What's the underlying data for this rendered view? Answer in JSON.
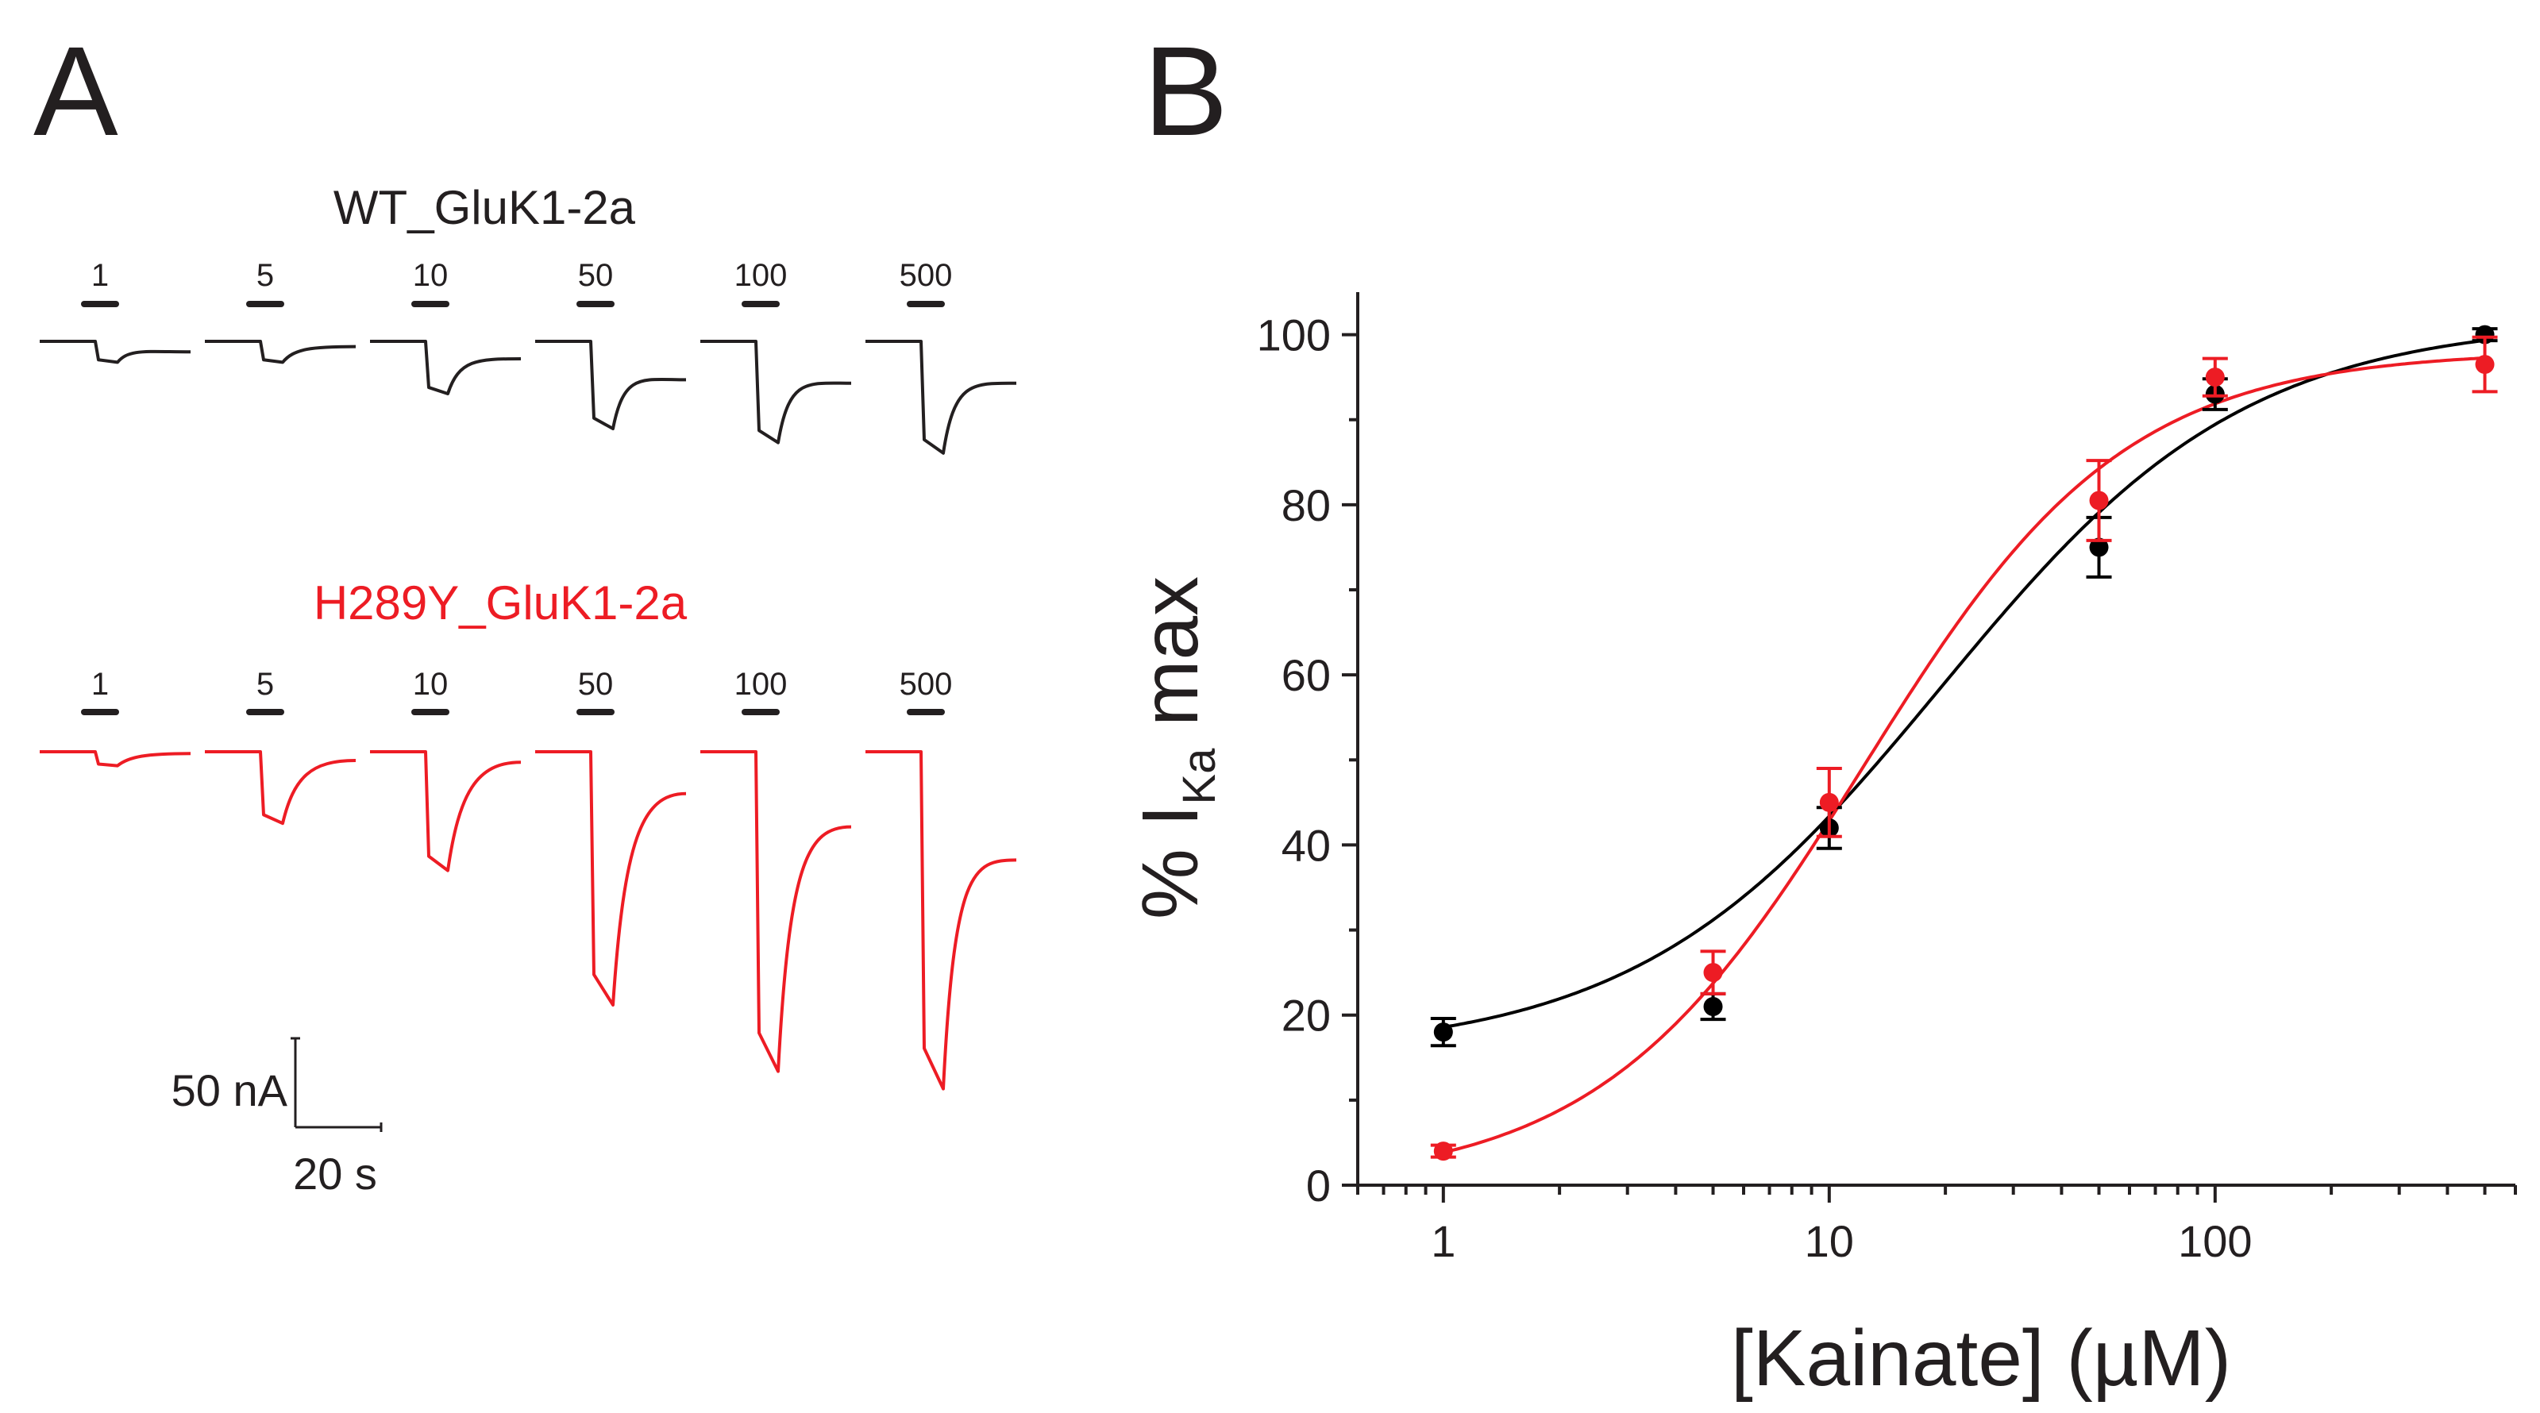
{
  "panels": {
    "a_label": "A",
    "b_label": "B"
  },
  "panel_a": {
    "wt": {
      "title": "WT_GluK1-2a",
      "color": "#231f20",
      "concentrations": [
        "1",
        "5",
        "10",
        "50",
        "100",
        "500"
      ],
      "peak_amplitude_nA": [
        12,
        12,
        30,
        50,
        58,
        64
      ],
      "steady_state_nA": [
        6,
        3,
        10,
        22,
        24,
        24
      ]
    },
    "mutant": {
      "title": "H289Y_GluK1-2a",
      "color": "#ed1c24",
      "concentrations": [
        "1",
        "5",
        "10",
        "50",
        "100",
        "500"
      ],
      "peak_amplitude_nA": [
        8,
        41,
        68,
        145,
        183,
        193
      ],
      "steady_state_nA": [
        1,
        5,
        6,
        24,
        43,
        62
      ]
    },
    "scale_bar": {
      "current_label": "50 nA",
      "time_label": "20 s",
      "current_value_nA": 50,
      "time_value_s": 20
    }
  },
  "chart_data": {
    "type": "scatter",
    "title": "",
    "xlabel": "[Kainate] (µM)",
    "ylabel_prefix": "% I",
    "ylabel_sub": "Ka",
    "ylabel_suffix": " max",
    "xscale": "log",
    "xlim": [
      0.6,
      600
    ],
    "ylim": [
      0,
      105
    ],
    "xticks": [
      1,
      10,
      100
    ],
    "xtick_labels": [
      "1",
      "10",
      "100"
    ],
    "yticks": [
      0,
      20,
      40,
      60,
      80,
      100
    ],
    "ytick_labels": [
      "0",
      "20",
      "40",
      "60",
      "80",
      "100"
    ],
    "grid": false,
    "legend": "none",
    "series": [
      {
        "color": "#000000",
        "x": [
          1,
          5,
          10,
          50,
          100,
          500
        ],
        "y": [
          18,
          21,
          42,
          75,
          93,
          100
        ],
        "err": [
          1.6,
          1.5,
          2.4,
          3.5,
          1.8,
          0.7
        ],
        "fit": {
          "bottom": 15.4,
          "top": 101.7,
          "ec50": 19.5,
          "hill": 1.1
        }
      },
      {
        "color": "#ed1c24",
        "x": [
          1,
          5,
          10,
          50,
          100,
          500
        ],
        "y": [
          4,
          25,
          45,
          80.5,
          95,
          96.5
        ],
        "err": [
          0.7,
          2.5,
          4,
          4.7,
          2.2,
          3.2
        ],
        "fit": {
          "bottom": 0,
          "top": 98.1,
          "ec50": 12.2,
          "hill": 1.28
        }
      }
    ]
  }
}
